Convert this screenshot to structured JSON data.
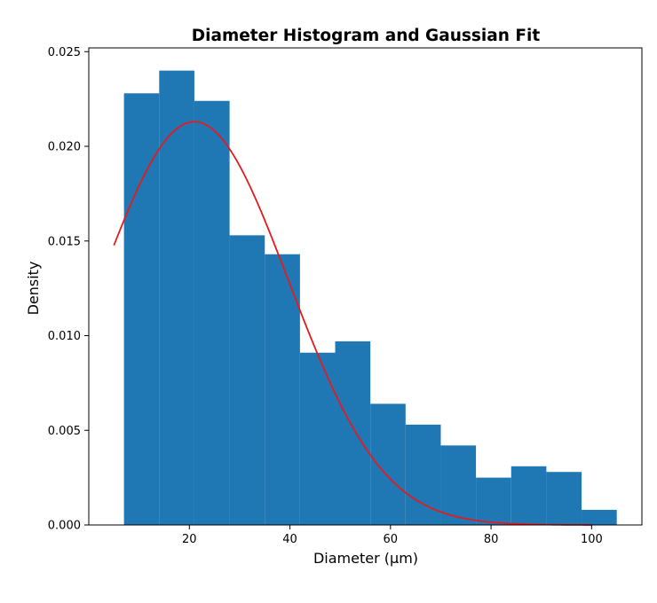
{
  "chart_data": {
    "type": "bar",
    "title": "Diameter Histogram and Gaussian Fit",
    "xlabel": "Diameter (µm)",
    "ylabel": "Density",
    "xlim": [
      0,
      110
    ],
    "ylim": [
      0,
      0.0252
    ],
    "xticks": [
      20,
      40,
      60,
      80,
      100
    ],
    "yticks": [
      "0.000",
      "0.005",
      "0.010",
      "0.015",
      "0.020",
      "0.025"
    ],
    "grid": false,
    "bins": {
      "edges": [
        7,
        14,
        21,
        28,
        35,
        42,
        49,
        56,
        63,
        70,
        77,
        84,
        91,
        98,
        105
      ],
      "density": [
        0.0228,
        0.024,
        0.0224,
        0.0153,
        0.0143,
        0.0091,
        0.0097,
        0.0064,
        0.0053,
        0.0042,
        0.0025,
        0.0031,
        0.0028,
        0.0008
      ],
      "color": "#1f77b4"
    },
    "fit": {
      "kind": "gaussian",
      "mean": 21,
      "sd": 18.7,
      "peak_density": 0.0213,
      "x_range": [
        5,
        100
      ],
      "color": "#e41a1c"
    }
  }
}
